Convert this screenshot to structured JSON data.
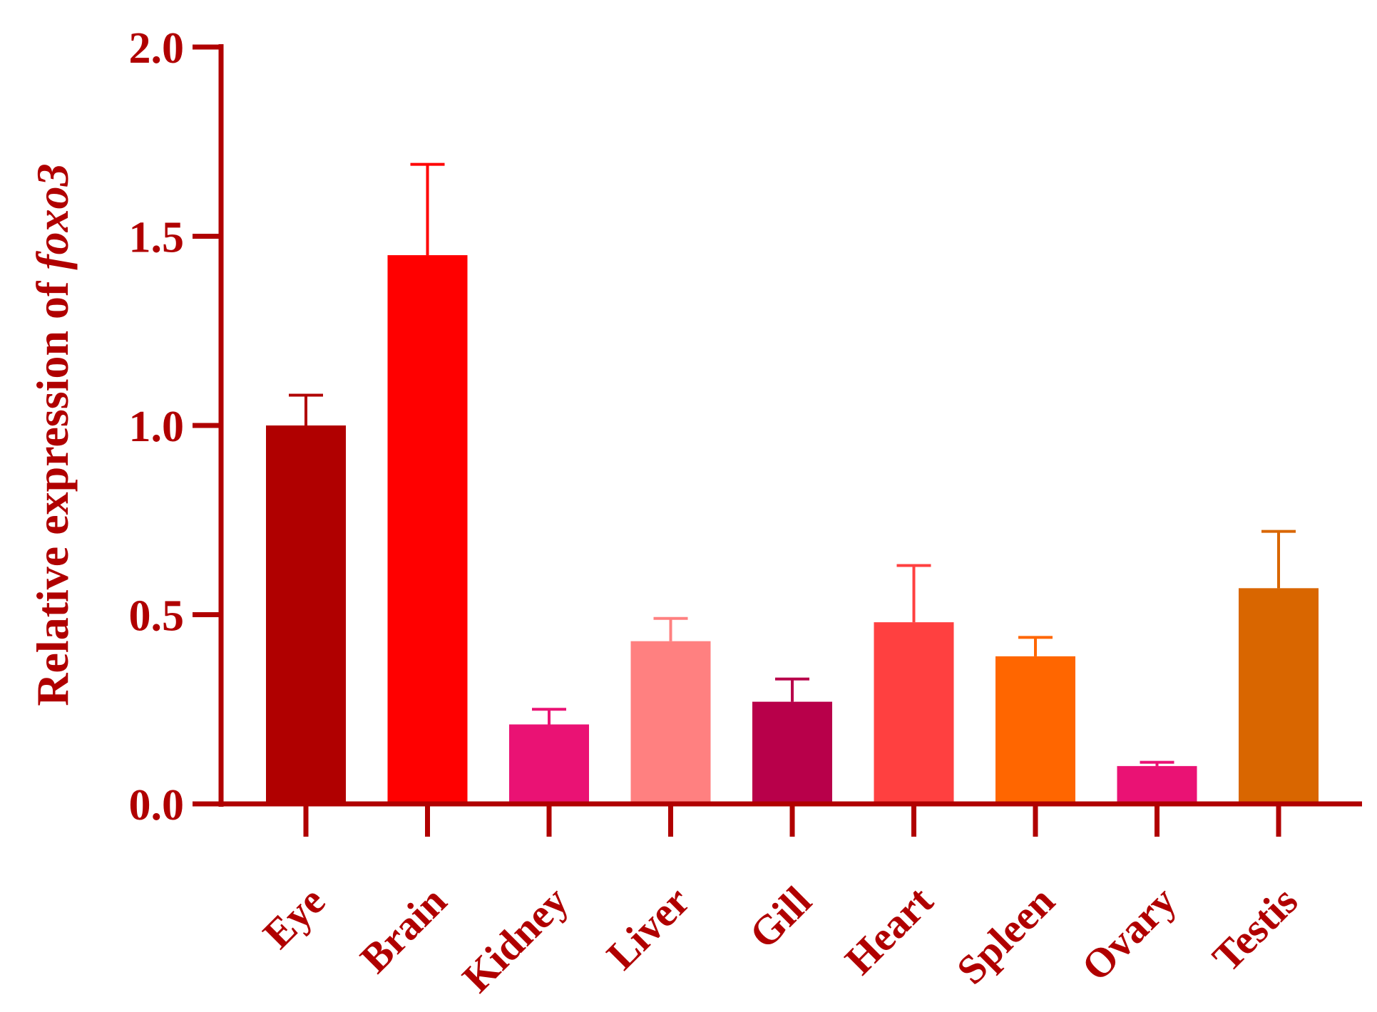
{
  "chart_data": {
    "type": "bar",
    "title": "",
    "xlabel": "",
    "ylabel": {
      "prefix": "Relative expression of ",
      "gene": "foxo3"
    },
    "ylim": [
      0,
      2.0
    ],
    "yticks": [
      "0.0",
      "0.5",
      "1.0",
      "1.5",
      "2.0"
    ],
    "ytick_values": [
      0,
      0.5,
      1.0,
      1.5,
      2.0
    ],
    "grid": false,
    "legend": "none",
    "categories": [
      "Eye",
      "Brain",
      "Kidney",
      "Liver",
      "Gill",
      "Heart",
      "Spleen",
      "Ovary",
      "Testis"
    ],
    "values": [
      1.0,
      1.45,
      0.21,
      0.43,
      0.27,
      0.48,
      0.39,
      0.1,
      0.57
    ],
    "errors": [
      0.08,
      0.24,
      0.04,
      0.06,
      0.06,
      0.15,
      0.05,
      0.01,
      0.15
    ],
    "colors": [
      "#b00000",
      "#ff0000",
      "#ea1274",
      "#ff8080",
      "#b8004a",
      "#ff4040",
      "#ff6600",
      "#ea1274",
      "#d96600"
    ],
    "axis_color": "#b00000"
  }
}
